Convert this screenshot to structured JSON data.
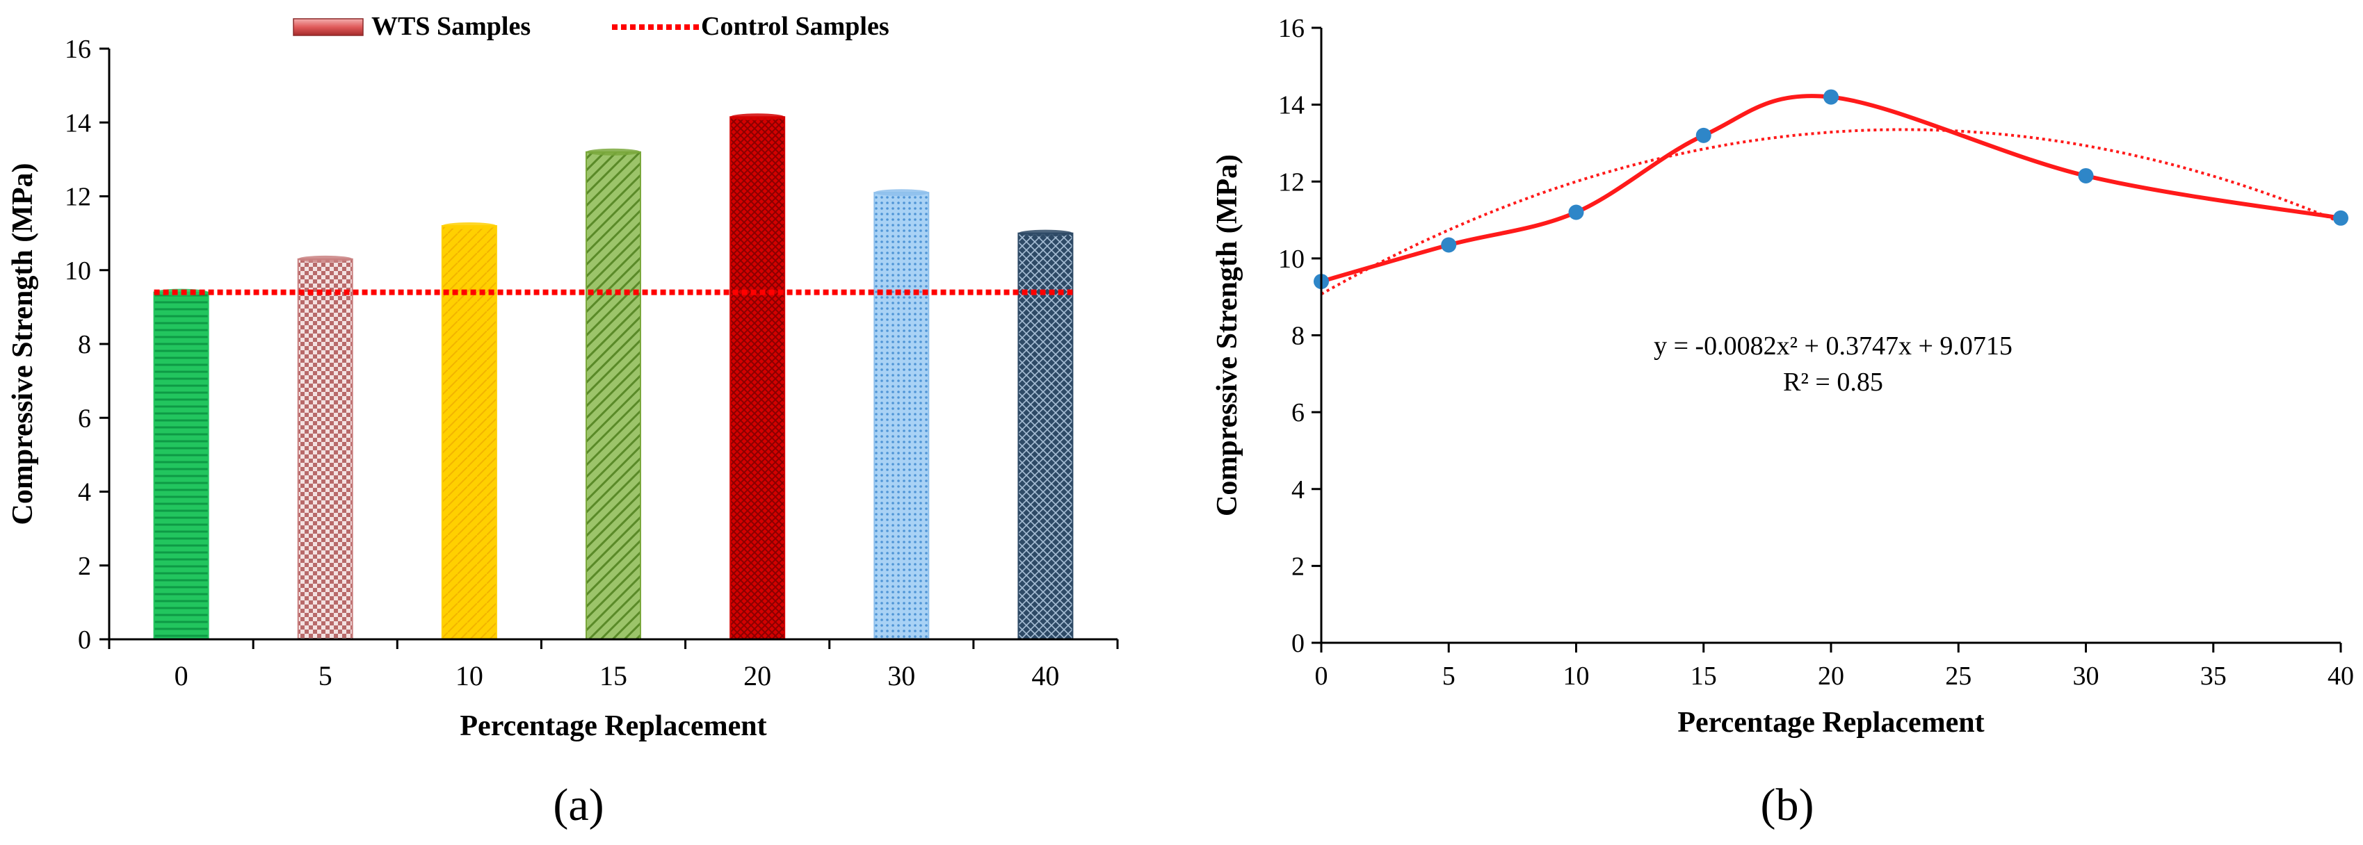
{
  "chart_data": [
    {
      "type": "bar",
      "panel_label": "(a)",
      "title": "",
      "xlabel": "Percentage Replacement",
      "ylabel": "Compressive Strength (MPa)",
      "categories": [
        "0",
        "5",
        "10",
        "15",
        "20",
        "30",
        "40"
      ],
      "values": [
        9.4,
        10.3,
        11.2,
        13.2,
        14.15,
        12.1,
        11.0
      ],
      "ylim": [
        0,
        16
      ],
      "yticks": [
        0,
        2,
        4,
        6,
        8,
        10,
        12,
        14,
        16
      ],
      "grid": false,
      "legend_position": "top-center",
      "legend": [
        {
          "name": "WTS Samples",
          "style": "bar"
        },
        {
          "name": "Control Samples",
          "style": "dotted-line"
        }
      ],
      "control_value": 9.4,
      "colors": {
        "bars": [
          "#22c55e",
          "#c98080",
          "#ffd000",
          "#7aa83c",
          "#d40000",
          "#8ec0ec",
          "#2e4a66"
        ],
        "control_line": "#ff0000",
        "legend_bar": "#e05a5a"
      }
    },
    {
      "type": "scatter",
      "panel_label": "(b)",
      "title": "",
      "xlabel": "Percentage Replacement",
      "ylabel": "Compressive Strength (MPa)",
      "series": [
        {
          "name": "Compressive Strength",
          "x": [
            0,
            5,
            10,
            15,
            20,
            30,
            40
          ],
          "y": [
            9.4,
            10.35,
            11.2,
            13.2,
            14.2,
            12.15,
            11.05
          ]
        }
      ],
      "trendline": {
        "type": "polynomial",
        "a": -0.0082,
        "b": 0.3747,
        "c": 9.0715
      },
      "equation": "y = -0.0082x² + 0.3747x + 9.0715",
      "r_squared": "R² = 0.85",
      "xlim": [
        0,
        40
      ],
      "xticks": [
        0,
        5,
        10,
        15,
        20,
        25,
        30,
        35,
        40
      ],
      "ylim": [
        0,
        16
      ],
      "yticks": [
        0,
        2,
        4,
        6,
        8,
        10,
        12,
        14,
        16
      ],
      "grid": false,
      "colors": {
        "line": "#ff1a1a",
        "points": "#2e86c8",
        "trendline": "#ff1a1a"
      }
    }
  ]
}
